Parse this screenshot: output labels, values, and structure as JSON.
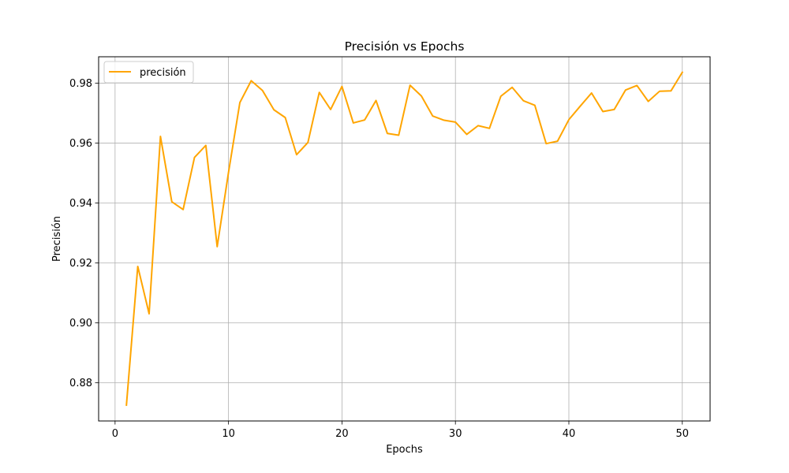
{
  "chart_data": {
    "type": "line",
    "title": "Precisión vs Epochs",
    "xlabel": "Epochs",
    "ylabel": "Precisión",
    "xlim": [
      -1.45,
      52.45
    ],
    "ylim": [
      0.8672,
      0.9888
    ],
    "xticks": [
      0,
      10,
      20,
      30,
      40,
      50
    ],
    "yticks": [
      0.88,
      0.9,
      0.92,
      0.94,
      0.96,
      0.98
    ],
    "ytick_labels": [
      "0.88",
      "0.90",
      "0.92",
      "0.94",
      "0.96",
      "0.98"
    ],
    "grid": true,
    "legend_position": "top-left",
    "series": [
      {
        "name": "precisión",
        "color": "#ffa500",
        "x": [
          1,
          2,
          3,
          4,
          5,
          6,
          7,
          8,
          9,
          10,
          11,
          12,
          13,
          14,
          15,
          16,
          17,
          18,
          19,
          20,
          21,
          22,
          23,
          24,
          25,
          26,
          27,
          28,
          29,
          30,
          31,
          32,
          33,
          34,
          35,
          36,
          37,
          38,
          39,
          40,
          41,
          42,
          43,
          44,
          45,
          46,
          47,
          48,
          49,
          50
        ],
        "values": [
          0.8725,
          0.9188,
          0.903,
          0.9622,
          0.9404,
          0.9378,
          0.9552,
          0.9592,
          0.9254,
          0.9502,
          0.9735,
          0.9808,
          0.9775,
          0.9711,
          0.9685,
          0.9561,
          0.9602,
          0.9769,
          0.9712,
          0.9789,
          0.9667,
          0.9677,
          0.9742,
          0.9632,
          0.9626,
          0.9793,
          0.9757,
          0.969,
          0.9676,
          0.967,
          0.9629,
          0.9658,
          0.9649,
          0.9756,
          0.9786,
          0.9741,
          0.9726,
          0.9598,
          0.9606,
          0.9678,
          0.9723,
          0.9767,
          0.9705,
          0.9712,
          0.9777,
          0.9792,
          0.9739,
          0.9773,
          0.9774,
          0.9836
        ]
      }
    ]
  }
}
